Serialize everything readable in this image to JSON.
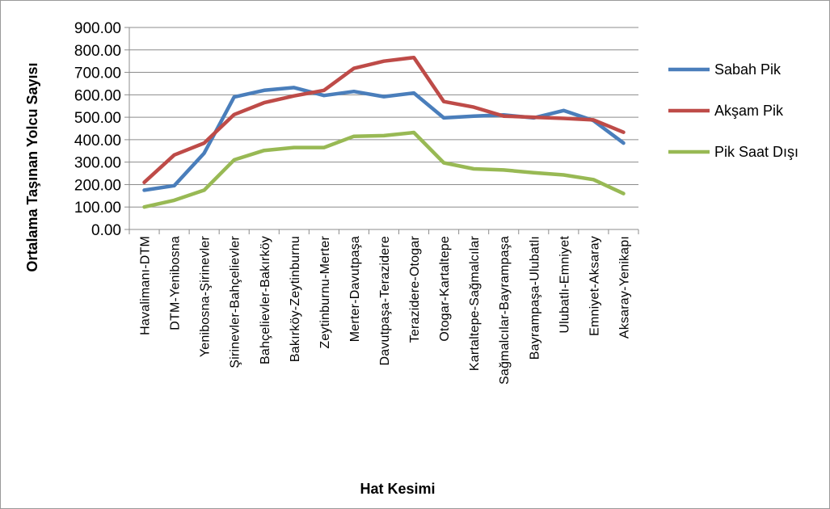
{
  "chart_data": {
    "type": "line",
    "title": "",
    "xlabel": "Hat Kesimi",
    "ylabel": "Ortalama Taşınan Yolcu Sayısı",
    "ylim": [
      0,
      900
    ],
    "yticks": [
      "0.00",
      "100.00",
      "200.00",
      "300.00",
      "400.00",
      "500.00",
      "600.00",
      "700.00",
      "800.00",
      "900.00"
    ],
    "grid": true,
    "legend_position": "right",
    "categories": [
      "Havalimanı-DTM",
      "DTM-Yenibosna",
      "Yenibosna-Şirinevler",
      "Şirinevler-Bahçelievler",
      "Bahçelievler-Bakırköy",
      "Bakırköy-Zeytinburnu",
      "Zeytinburnu-Merter",
      "Merter-Davutpaşa",
      "Davutpaşa-Terazidere",
      "Terazidere-Otogar",
      "Otogar-Kartaltepe",
      "Kartaltepe-Sağmalcılar",
      "Sağmalcılar-Bayrampaşa",
      "Bayrampaşa-Ulubatlı",
      "Ulubatlı-Emniyet",
      "Emniyet-Aksaray",
      "Aksaray-Yenikapı"
    ],
    "series": [
      {
        "name": "Sabah Pik",
        "color": "#4a7ebb",
        "values": [
          175,
          195,
          340,
          590,
          620,
          632,
          597,
          615,
          592,
          608,
          497,
          505,
          510,
          497,
          530,
          485,
          385
        ]
      },
      {
        "name": "Akşam Pik",
        "color": "#be4b48",
        "values": [
          210,
          332,
          385,
          512,
          565,
          595,
          620,
          718,
          750,
          766,
          570,
          545,
          505,
          500,
          495,
          488,
          433
        ]
      },
      {
        "name": "Pik Saat Dışı",
        "color": "#98b954",
        "values": [
          100,
          130,
          175,
          310,
          352,
          365,
          365,
          415,
          418,
          432,
          297,
          270,
          265,
          253,
          243,
          222,
          160
        ]
      }
    ]
  }
}
